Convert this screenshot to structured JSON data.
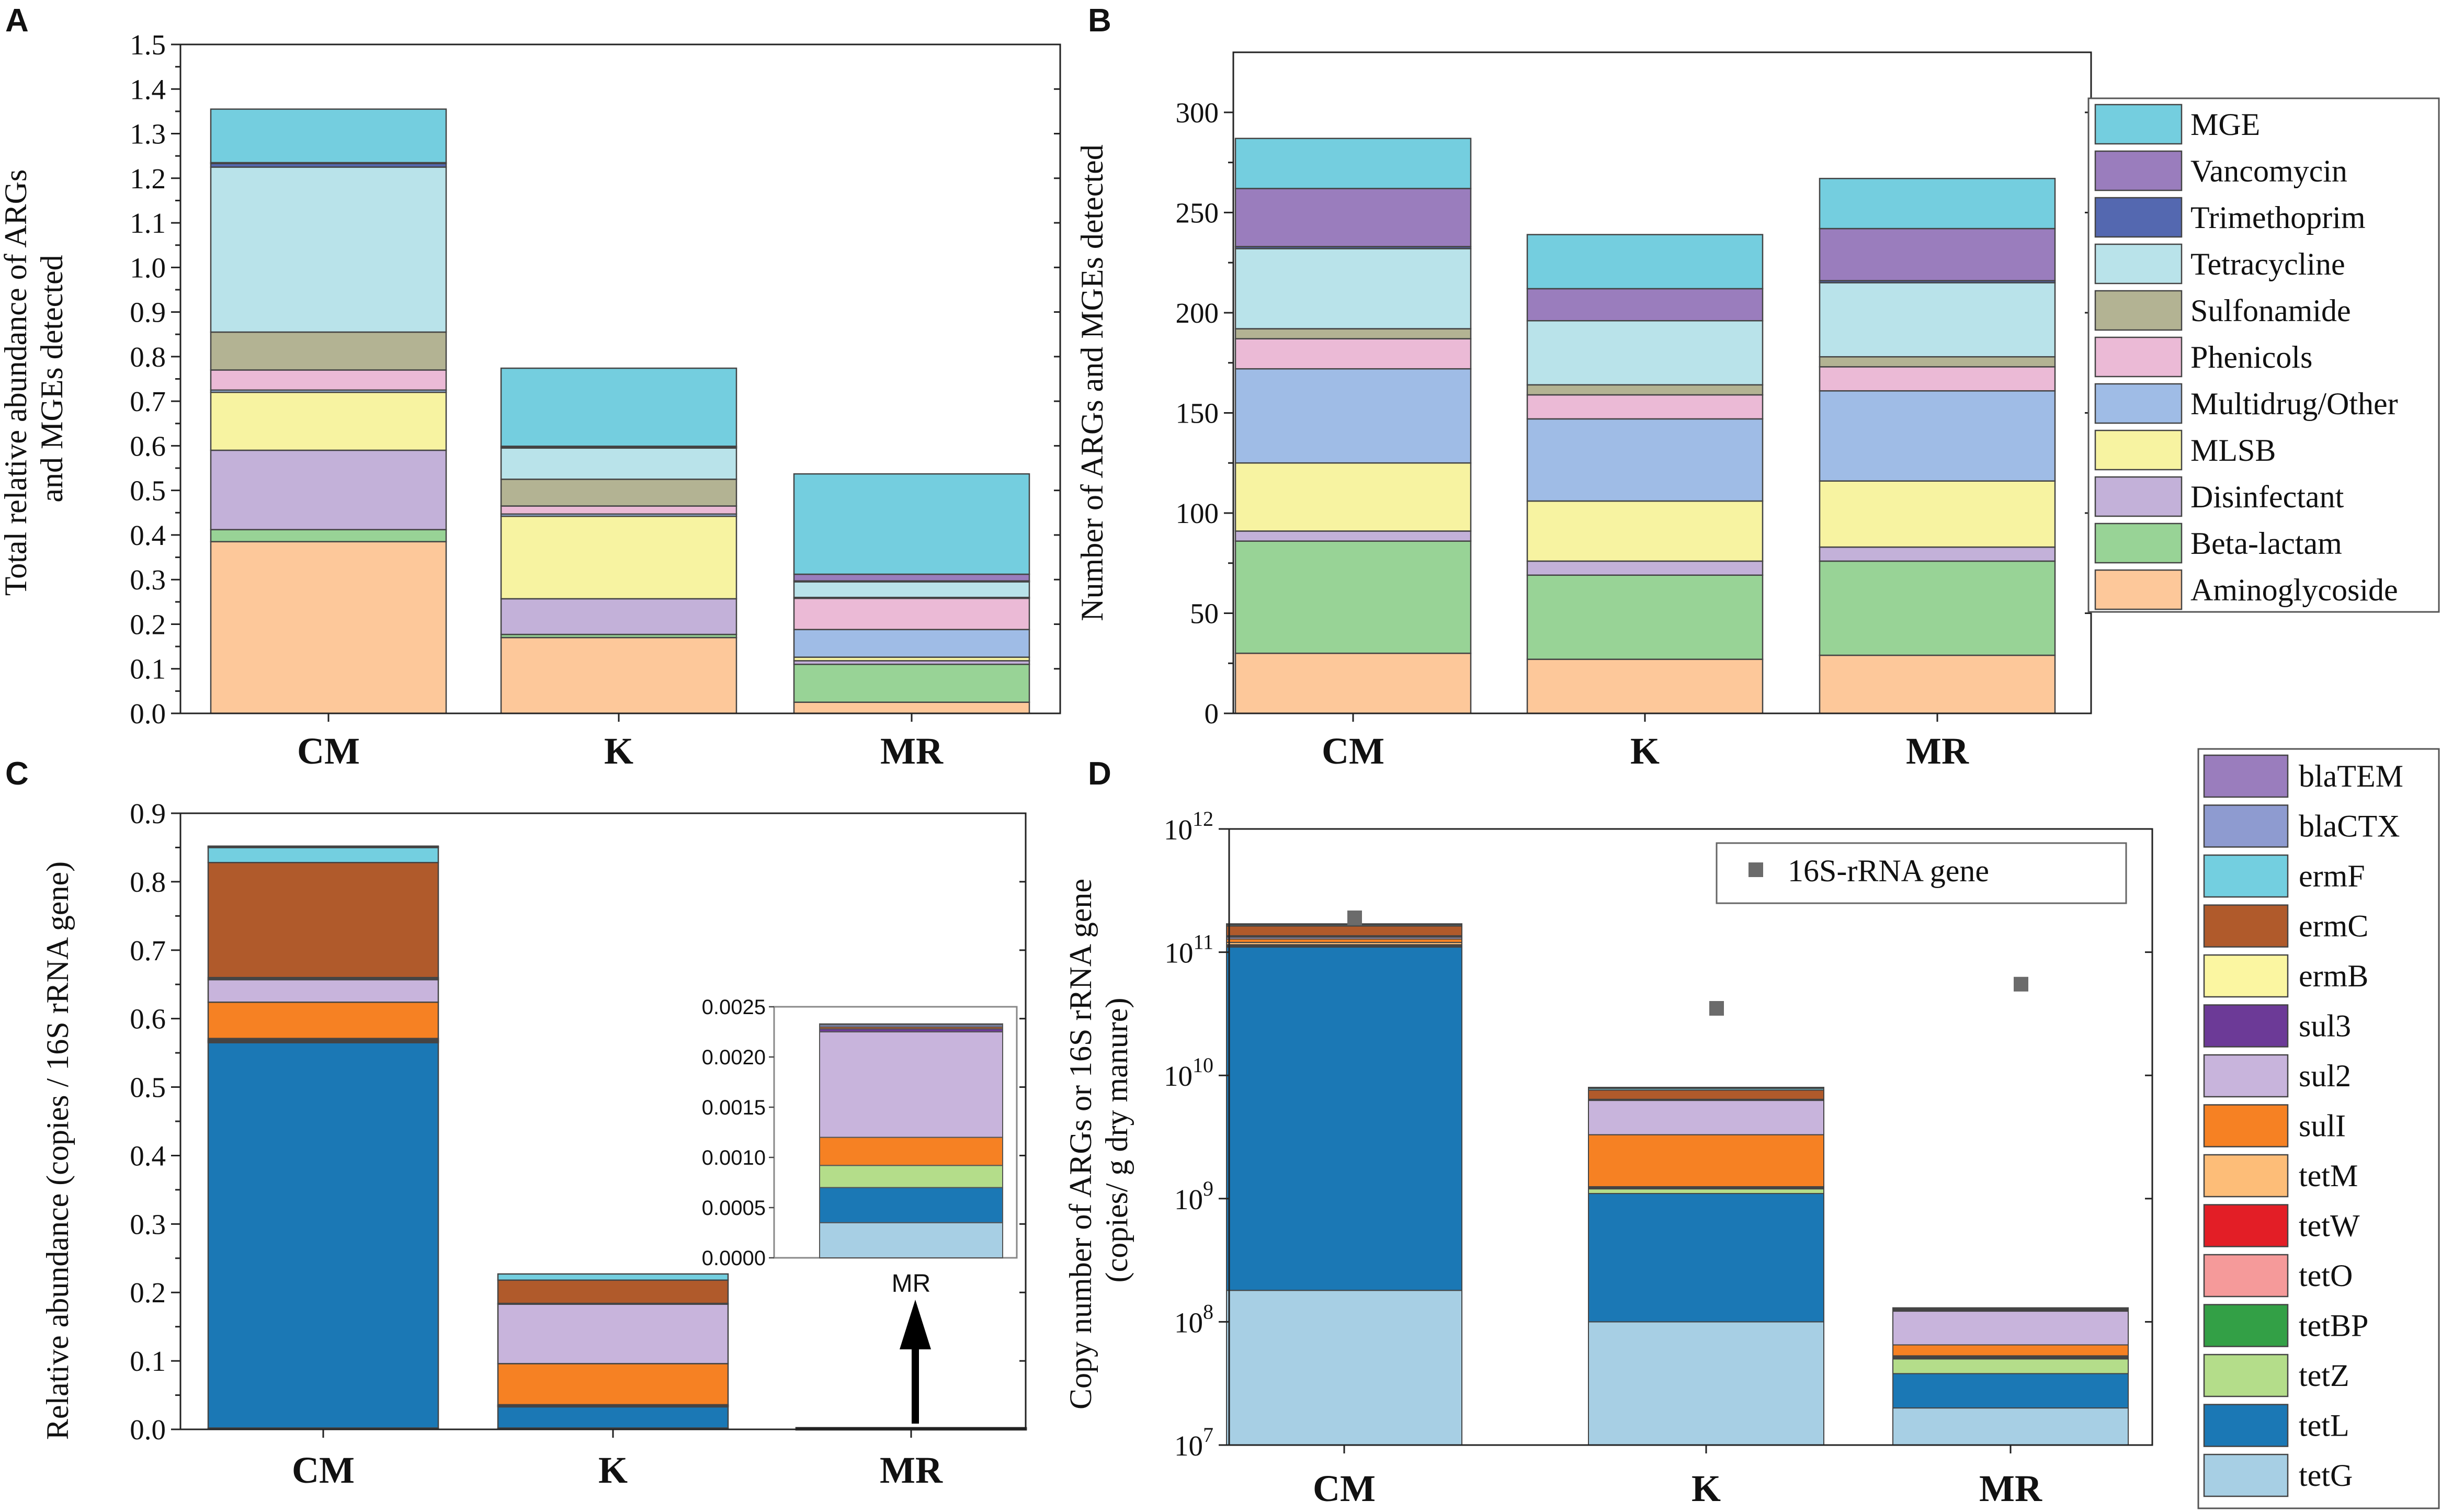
{
  "panels": {
    "A": "A",
    "B": "B",
    "C": "C",
    "D": "D"
  },
  "colors": {
    "Aminoglycoside": "#fdc89a",
    "Beta-lactam": "#98d396",
    "Disinfectant": "#c3b1d9",
    "MLSB": "#f7f3a1",
    "Multidrug/Other": "#9fbce6",
    "Phenicols": "#ebbad6",
    "Sulfonamide": "#b3b393",
    "Tetracycline": "#b9e3ea",
    "Trimethoprim": "#5468b0",
    "Vancomycin": "#9a7dbd",
    "MGE": "#74cedf",
    "blaTEM": "#9a7dbd",
    "blaCTX": "#8e9bd0",
    "ermF": "#73cfe0",
    "ermC": "#b05a2b",
    "ermB": "#fbf6a1",
    "sul3": "#6c3a97",
    "sul2": "#c8b4dc",
    "sulI": "#f68123",
    "tetM": "#fdbd78",
    "tetW": "#e31e26",
    "tetO": "#f59a9a",
    "tetBP": "#33a046",
    "tetZ": "#b4dd8a",
    "tetL": "#1b78b5",
    "tetG": "#a7cfe4",
    "marker16S": "#6b6b6b"
  },
  "chart_data": [
    {
      "id": "A",
      "type": "bar",
      "stacked": true,
      "ylabel": "Total relative abundance of ARGs\nand MGEs detected",
      "ylim": [
        0,
        1.5
      ],
      "yticks": [
        "0.0",
        "0.1",
        "0.2",
        "0.3",
        "0.4",
        "0.5",
        "0.6",
        "0.7",
        "0.8",
        "0.9",
        "1.0",
        "1.1",
        "1.2",
        "1.3",
        "1.4",
        "1.5"
      ],
      "categories": [
        "CM",
        "K",
        "MR"
      ],
      "series": [
        {
          "name": "Aminoglycoside",
          "values": [
            0.385,
            0.17,
            0.025
          ]
        },
        {
          "name": "Beta-lactam",
          "values": [
            0.027,
            0.007,
            0.085
          ]
        },
        {
          "name": "Disinfectant",
          "values": [
            0.178,
            0.08,
            0.008
          ]
        },
        {
          "name": "MLSB",
          "values": [
            0.13,
            0.185,
            0.008
          ]
        },
        {
          "name": "Multidrug/Other",
          "values": [
            0.005,
            0.005,
            0.062
          ]
        },
        {
          "name": "Phenicols",
          "values": [
            0.045,
            0.018,
            0.07
          ]
        },
        {
          "name": "Sulfonamide",
          "values": [
            0.085,
            0.06,
            0.002
          ]
        },
        {
          "name": "Tetracycline",
          "values": [
            0.37,
            0.07,
            0.035
          ]
        },
        {
          "name": "Trimethoprim",
          "values": [
            0.008,
            0.002,
            0.002
          ]
        },
        {
          "name": "Vancomycin",
          "values": [
            0.002,
            0.002,
            0.015
          ]
        },
        {
          "name": "MGE",
          "values": [
            0.12,
            0.175,
            0.225
          ]
        }
      ]
    },
    {
      "id": "B",
      "type": "bar",
      "stacked": true,
      "ylabel": "Number of ARGs and MGEs detected",
      "ylim": [
        0,
        330
      ],
      "yticks": [
        "0",
        "50",
        "100",
        "150",
        "200",
        "250",
        "300"
      ],
      "categories": [
        "CM",
        "K",
        "MR"
      ],
      "series": [
        {
          "name": "Aminoglycoside",
          "values": [
            30,
            27,
            29
          ]
        },
        {
          "name": "Beta-lactam",
          "values": [
            56,
            42,
            47
          ]
        },
        {
          "name": "Disinfectant",
          "values": [
            5,
            7,
            7
          ]
        },
        {
          "name": "MLSB",
          "values": [
            34,
            30,
            33
          ]
        },
        {
          "name": "Multidrug/Other",
          "values": [
            47,
            41,
            45
          ]
        },
        {
          "name": "Phenicols",
          "values": [
            15,
            12,
            12
          ]
        },
        {
          "name": "Sulfonamide",
          "values": [
            5,
            5,
            5
          ]
        },
        {
          "name": "Tetracycline",
          "values": [
            40,
            32,
            37
          ]
        },
        {
          "name": "Trimethoprim",
          "values": [
            1,
            0,
            1
          ]
        },
        {
          "name": "Vancomycin",
          "values": [
            29,
            16,
            26
          ]
        },
        {
          "name": "MGE",
          "values": [
            25,
            27,
            25
          ]
        }
      ]
    },
    {
      "id": "C",
      "type": "bar",
      "stacked": true,
      "ylabel": "Relative abundance (copies / 16S rRNA gene)",
      "ylim": [
        0,
        0.9
      ],
      "yticks": [
        "0.0",
        "0.1",
        "0.2",
        "0.3",
        "0.4",
        "0.5",
        "0.6",
        "0.7",
        "0.8",
        "0.9"
      ],
      "categories": [
        "CM",
        "K",
        "MR"
      ],
      "series": [
        {
          "name": "tetG",
          "values": [
            0.002,
            0.002,
            0.00035
          ]
        },
        {
          "name": "tetL",
          "values": [
            0.563,
            0.031,
            0.00035
          ]
        },
        {
          "name": "tetZ",
          "values": [
            0.001,
            0.001,
            0.00022
          ]
        },
        {
          "name": "tetBP",
          "values": [
            0.001,
            0.001,
            0
          ]
        },
        {
          "name": "tetO",
          "values": [
            0.001,
            0.0,
            0
          ]
        },
        {
          "name": "tetW",
          "values": [
            0.001,
            0.0,
            0
          ]
        },
        {
          "name": "tetM",
          "values": [
            0.002,
            0.001,
            0
          ]
        },
        {
          "name": "sulI",
          "values": [
            0.053,
            0.06,
            0.00028
          ]
        },
        {
          "name": "sul2",
          "values": [
            0.033,
            0.087,
            0.00105
          ]
        },
        {
          "name": "sul3",
          "values": [
            0.001,
            0.0,
            3e-05
          ]
        },
        {
          "name": "ermB",
          "values": [
            0.002,
            0.001,
            0
          ]
        },
        {
          "name": "ermC",
          "values": [
            0.168,
            0.034,
            2e-05
          ]
        },
        {
          "name": "ermF",
          "values": [
            0.022,
            0.009,
            0
          ]
        },
        {
          "name": "blaCTX",
          "values": [
            0.001,
            0.0,
            2e-05
          ]
        },
        {
          "name": "blaTEM",
          "values": [
            0.001,
            0.0,
            1e-05
          ]
        }
      ],
      "inset": {
        "category": "MR",
        "ylim": [
          0,
          0.0025
        ],
        "yticks": [
          "0.0000",
          "0.0005",
          "0.0010",
          "0.0015",
          "0.0020",
          "0.0025"
        ]
      }
    },
    {
      "id": "D",
      "type": "bar",
      "stacked": true,
      "yscale": "log",
      "ylabel": "Copy number of ARGs or 16S rRNA gene\n(copies/ g dry manure)",
      "ylim": [
        10000000,
        1000000000000
      ],
      "ytick_base": "10",
      "ytick_exponents": [
        "7",
        "8",
        "9",
        "10",
        "11",
        "12"
      ],
      "categories": [
        "CM",
        "K",
        "MR"
      ],
      "bar_tops": [
        170000000000,
        8000000000,
        130000000
      ],
      "series": [
        {
          "name": "tetG",
          "cumulative_tops": [
            180000000,
            100000000,
            20000000
          ]
        },
        {
          "name": "tetL",
          "cumulative_tops": [
            110000000000,
            1100000000,
            38000000
          ]
        },
        {
          "name": "tetZ",
          "cumulative_tops": [
            112000000000,
            1200000000,
            50000000
          ]
        },
        {
          "name": "tetBP",
          "cumulative_tops": [
            113000000000,
            1220000000,
            51000000
          ]
        },
        {
          "name": "tetO",
          "cumulative_tops": [
            114000000000,
            1230000000,
            51500000
          ]
        },
        {
          "name": "tetW",
          "cumulative_tops": [
            115000000000,
            1240000000,
            52000000
          ]
        },
        {
          "name": "tetM",
          "cumulative_tops": [
            120000000000,
            1250000000,
            53000000
          ]
        },
        {
          "name": "sulI",
          "cumulative_tops": [
            128000000000,
            3300000000,
            65000000
          ]
        },
        {
          "name": "sul2",
          "cumulative_tops": [
            133000000000,
            6300000000,
            122000000
          ]
        },
        {
          "name": "sul3",
          "cumulative_tops": [
            134000000000,
            6350000000,
            124000000
          ]
        },
        {
          "name": "ermB",
          "cumulative_tops": [
            136000000000,
            6400000000,
            125000000
          ]
        },
        {
          "name": "ermC",
          "cumulative_tops": [
            163000000000,
            7600000000,
            127000000
          ]
        },
        {
          "name": "ermF",
          "cumulative_tops": [
            167000000000,
            7900000000,
            128000000
          ]
        },
        {
          "name": "blaCTX",
          "cumulative_tops": [
            169000000000,
            7950000000,
            129000000
          ]
        },
        {
          "name": "blaTEM",
          "cumulative_tops": [
            170000000000,
            8000000000,
            130000000
          ]
        }
      ],
      "marker": {
        "name": "16S-rRNA gene",
        "values": [
          190000000000,
          35000000000,
          55000000000
        ]
      }
    }
  ],
  "legends": {
    "AB": [
      "MGE",
      "Vancomycin",
      "Trimethoprim",
      "Tetracycline",
      "Sulfonamide",
      "Phenicols",
      "Multidrug/Other",
      "MLSB",
      "Disinfectant",
      "Beta-lactam",
      "Aminoglycoside"
    ],
    "CD": [
      "blaTEM",
      "blaCTX",
      "ermF",
      "ermC",
      "ermB",
      "sul3",
      "sul2",
      "sulI",
      "tetM",
      "tetW",
      "tetO",
      "tetBP",
      "tetZ",
      "tetL",
      "tetG"
    ]
  }
}
